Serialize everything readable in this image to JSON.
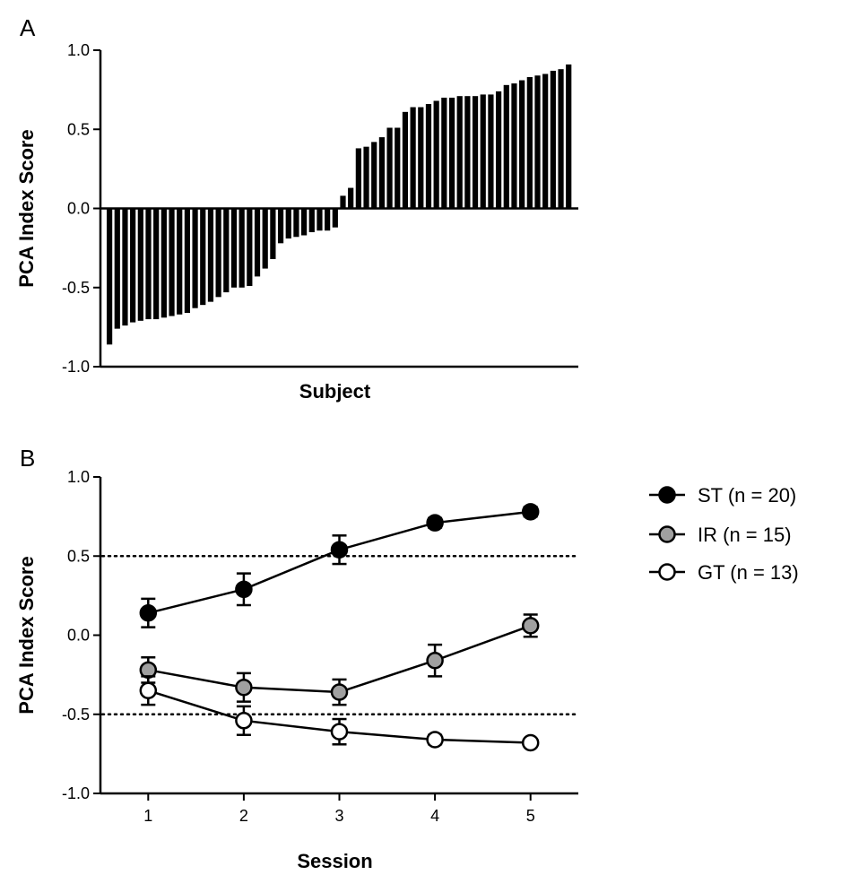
{
  "chart_data": [
    {
      "panel": "A",
      "type": "bar",
      "title": "",
      "xlabel": "Subject",
      "ylabel": "PCA Index Score",
      "ylim": [
        -1.0,
        1.0
      ],
      "yticks": [
        "-1.0",
        "-0.5",
        "0.0",
        "0.5",
        "1.0"
      ],
      "grid": false,
      "values": [
        -0.86,
        -0.76,
        -0.74,
        -0.72,
        -0.71,
        -0.7,
        -0.7,
        -0.69,
        -0.68,
        -0.67,
        -0.66,
        -0.63,
        -0.61,
        -0.59,
        -0.56,
        -0.53,
        -0.5,
        -0.5,
        -0.49,
        -0.43,
        -0.38,
        -0.32,
        -0.22,
        -0.19,
        -0.18,
        -0.17,
        -0.15,
        -0.14,
        -0.14,
        -0.12,
        0.08,
        0.13,
        0.38,
        0.39,
        0.42,
        0.45,
        0.51,
        0.51,
        0.61,
        0.64,
        0.64,
        0.66,
        0.68,
        0.7,
        0.7,
        0.71,
        0.71,
        0.71,
        0.72,
        0.72,
        0.74,
        0.78,
        0.79,
        0.81,
        0.83,
        0.84,
        0.85,
        0.87,
        0.88,
        0.91
      ]
    },
    {
      "panel": "B",
      "type": "line",
      "title": "",
      "xlabel": "Session",
      "ylabel": "PCA Index Score",
      "x": [
        1,
        2,
        3,
        4,
        5
      ],
      "xticks": [
        "1",
        "2",
        "3",
        "4",
        "5"
      ],
      "xlim": [
        0.5,
        5.5
      ],
      "ylim": [
        -1.0,
        1.0
      ],
      "yticks": [
        "-1.0",
        "-0.5",
        "0.0",
        "0.5",
        "1.0"
      ],
      "reference_lines": [
        0.5,
        -0.5
      ],
      "legend_position": "right",
      "series": [
        {
          "name": "ST (n = 20)",
          "fill": "#000000",
          "values": [
            0.14,
            0.29,
            0.54,
            0.71,
            0.78
          ],
          "error": [
            0.09,
            0.1,
            0.09,
            0.03,
            0.03
          ]
        },
        {
          "name": "IR (n = 15)",
          "fill": "#a0a0a0",
          "values": [
            -0.22,
            -0.33,
            -0.36,
            -0.16,
            0.06
          ],
          "error": [
            0.08,
            0.09,
            0.08,
            0.1,
            0.07
          ]
        },
        {
          "name": "GT (n = 13)",
          "fill": "#ffffff",
          "values": [
            -0.35,
            -0.54,
            -0.61,
            -0.66,
            -0.68
          ],
          "error": [
            0.09,
            0.09,
            0.08,
            0.03,
            0.02
          ]
        }
      ]
    }
  ],
  "panels": {
    "a_label": "A",
    "b_label": "B"
  }
}
